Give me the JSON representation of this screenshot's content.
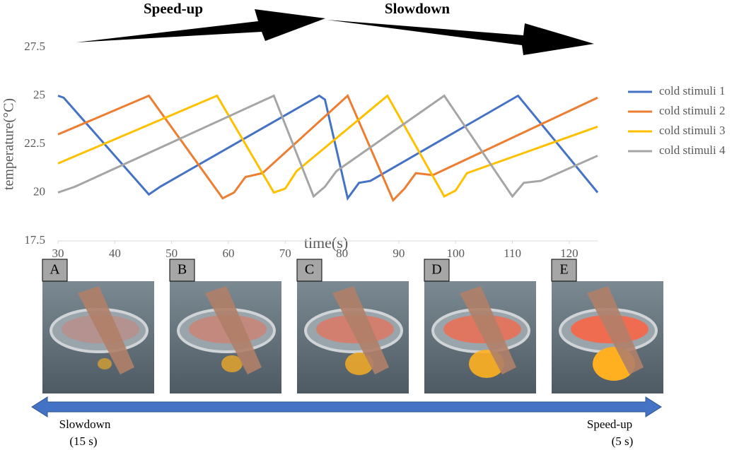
{
  "chart_data": {
    "type": "line",
    "annotations": [
      "Speed-up",
      "Slowdown"
    ],
    "xlabel": "time(s)",
    "ylabel": "temperature(°C)",
    "xlim": [
      30,
      125
    ],
    "xticks": [
      30,
      40,
      50,
      60,
      70,
      80,
      90,
      100,
      110,
      120
    ],
    "ylim": [
      17.5,
      27.5
    ],
    "yticks": [
      17.5,
      20,
      22.5,
      25,
      27.5
    ],
    "grid": false,
    "legend": "right",
    "series": [
      {
        "name": "cold stimuli 1",
        "color": "#4472c4",
        "x": [
          30,
          31,
          46,
          48,
          76,
          77,
          81,
          83,
          85,
          111,
          125
        ],
        "values": [
          25,
          24.9,
          19.9,
          20.3,
          25,
          24.8,
          19.7,
          20.5,
          20.6,
          25,
          20
        ]
      },
      {
        "name": "cold stimuli 2",
        "color": "#ed7d31",
        "x": [
          30,
          46,
          59,
          61,
          63,
          66,
          81,
          89,
          91,
          93,
          96,
          125
        ],
        "values": [
          23,
          25,
          19.7,
          20,
          20.8,
          21,
          25,
          19.6,
          20.2,
          21,
          20.9,
          24.9
        ]
      },
      {
        "name": "cold stimuli 3",
        "color": "#ffc000",
        "x": [
          30,
          58,
          68,
          70,
          72,
          88,
          98,
          100,
          102,
          125
        ],
        "values": [
          21.5,
          25,
          20,
          20.2,
          21.1,
          25,
          19.8,
          20.1,
          21,
          23.4
        ]
      },
      {
        "name": "cold stimuli 4",
        "color": "#a5a5a5",
        "x": [
          30,
          33,
          68,
          75,
          77,
          79,
          98,
          110,
          112,
          115,
          125
        ],
        "values": [
          20,
          20.3,
          25,
          19.8,
          20.3,
          21.1,
          25,
          19.8,
          20.5,
          20.6,
          21.9
        ]
      }
    ]
  },
  "panels": [
    "A",
    "B",
    "C",
    "D",
    "E"
  ],
  "scale": {
    "left": "Slowdown",
    "left_time": "(15 s)",
    "right": "Speed-up",
    "right_time": "(5 s)"
  }
}
